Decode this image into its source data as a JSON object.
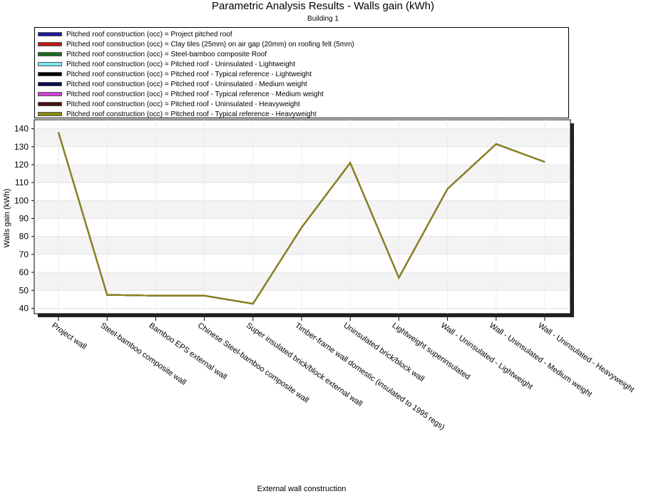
{
  "chart_data": {
    "type": "line",
    "title": "Parametric Analysis Results -  Walls gain (kWh)",
    "subtitle": "Building 1",
    "xlabel": "External wall construction",
    "ylabel": "Walls gain (kWh)",
    "ylim": [
      37,
      145
    ],
    "yticks": [
      40,
      50,
      60,
      70,
      80,
      90,
      100,
      110,
      120,
      130,
      140
    ],
    "grid": "horizontal bands",
    "legend_placement": "top",
    "categories": [
      "Project wall",
      "Steel-bamboo composite wall",
      "Bamboo EPS external wall",
      "Chinese Steel-bamboo composite wall",
      "Super insulated brick/block external wall",
      "Timber-frame wall domestic (insulated to 1995 regs)",
      "Uninsulated brick/block wall",
      "Lightweight superinsulated",
      "Wall - Uninsulated - Lightweight",
      "Wall - Uninsulated - Medium weight",
      "Wall - Uninsulated - Heavyweight"
    ],
    "series": [
      {
        "name": "Pitched roof construction (occ) = Project pitched roof",
        "color": "#1a1aa0",
        "values": [
          138,
          47.5,
          47,
          47,
          42.5,
          85,
          121,
          57,
          106.5,
          131.5,
          121.5
        ]
      },
      {
        "name": "Pitched roof construction (occ) = Clay tiles (25mm) on air gap (20mm) on roofing felt (5mm)",
        "color": "#c01818",
        "values": [
          138,
          47.5,
          47,
          47,
          42.5,
          85,
          121,
          57,
          106.5,
          131.5,
          121.5
        ]
      },
      {
        "name": "Pitched roof construction (occ) = Steel-bamboo composite Roof",
        "color": "#1c6e1c",
        "values": [
          138,
          47.5,
          47,
          47,
          42.5,
          85,
          121,
          57,
          106.5,
          131.5,
          121.5
        ]
      },
      {
        "name": "Pitched roof construction (occ) = Pitched roof - Uninsulated - Lightweight",
        "color": "#7fe8f0",
        "values": [
          138,
          47.5,
          47,
          47,
          42.5,
          85,
          121,
          57,
          106.5,
          131.5,
          121.5
        ]
      },
      {
        "name": "Pitched roof construction (occ) = Pitched roof - Typical reference - Lightweight",
        "color": "#000000",
        "values": [
          138,
          47.5,
          47,
          47,
          42.5,
          85,
          121,
          57,
          106.5,
          131.5,
          121.5
        ]
      },
      {
        "name": "Pitched roof construction (occ) = Pitched roof - Uninsulated - Medium weight",
        "color": "#0a0a50",
        "values": [
          138,
          47.5,
          47,
          47,
          42.5,
          85,
          121,
          57,
          106.5,
          131.5,
          121.5
        ]
      },
      {
        "name": "Pitched roof construction (occ) = Pitched roof - Typical reference - Medium weight",
        "color": "#d040d8",
        "values": [
          138,
          47.5,
          47,
          47,
          42.5,
          85,
          121,
          57,
          106.5,
          131.5,
          121.5
        ]
      },
      {
        "name": "Pitched roof construction (occ) = Pitched roof - Uninsulated - Heavyweight",
        "color": "#4a1010",
        "values": [
          138,
          47.5,
          47,
          47,
          42.5,
          85,
          121,
          57,
          106.5,
          131.5,
          121.5
        ]
      },
      {
        "name": "Pitched roof construction (occ) = Pitched roof - Typical reference - Heavyweight",
        "color": "#8a8a10",
        "values": [
          138,
          47.5,
          47,
          47,
          42.5,
          85,
          121,
          57,
          106.5,
          131.5,
          121.5
        ]
      }
    ]
  }
}
